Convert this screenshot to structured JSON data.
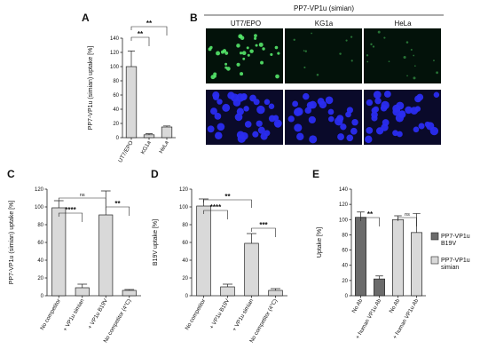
{
  "colors": {
    "bar_light": "#d9d9d9",
    "bar_dark": "#6b6b6b",
    "micro_green_bg": "#03120a",
    "micro_green": "#55e86a",
    "micro_blue_bg": "#0a0a2a",
    "micro_blue": "#2a2cf0"
  },
  "panels": {
    "A": {
      "letter": "A"
    },
    "B": {
      "letter": "B",
      "title": "PP7-VP1u (simian)",
      "columns": [
        "UT7/EPO",
        "KG1a",
        "HeLa"
      ]
    },
    "C": {
      "letter": "C"
    },
    "D": {
      "letter": "D"
    },
    "E": {
      "letter": "E"
    }
  },
  "chart_data": [
    {
      "id": "A",
      "type": "bar",
      "ylabel": "PP7-VP1u (simian) uptake [%]",
      "ylim": [
        0,
        140
      ],
      "yticks": [
        0,
        20,
        40,
        60,
        80,
        100,
        120,
        140
      ],
      "categories": [
        "UT7/EPO",
        "KG1a",
        "HeLa"
      ],
      "values": [
        100,
        4,
        15
      ],
      "errors": [
        22,
        1.5,
        1.5
      ],
      "colors": [
        "#d9d9d9",
        "#d9d9d9",
        "#d9d9d9"
      ],
      "significance": [
        {
          "from": 0,
          "to": 1,
          "label": "**"
        },
        {
          "from": 0,
          "to": 2,
          "label": "**"
        }
      ]
    },
    {
      "id": "C",
      "type": "bar",
      "ylabel": "PP7-VP1u (simian) uptake [%]",
      "ylim": [
        0,
        120
      ],
      "yticks": [
        0,
        20,
        40,
        60,
        80,
        100,
        120
      ],
      "categories": [
        "No competitor",
        "+ VP1u simian",
        "+ VP1u B19V",
        "No competitor (4°C)"
      ],
      "values": [
        99,
        9,
        91,
        6
      ],
      "errors": [
        8,
        4,
        27,
        1
      ],
      "colors": [
        "#d9d9d9",
        "#d9d9d9",
        "#d9d9d9",
        "#d9d9d9"
      ],
      "significance": [
        {
          "from": 0,
          "to": 1,
          "label": "****"
        },
        {
          "from": 2,
          "to": 3,
          "label": "**"
        },
        {
          "from": 0,
          "to": 2,
          "label": "ns"
        }
      ]
    },
    {
      "id": "D",
      "type": "bar",
      "ylabel": "B19V uptake [%]",
      "ylim": [
        0,
        120
      ],
      "yticks": [
        0,
        20,
        40,
        60,
        80,
        100,
        120
      ],
      "categories": [
        "No competitor",
        "+ VP1u B19V",
        "+ VP1u simian",
        "No competitor (4°C)"
      ],
      "values": [
        101,
        10,
        59,
        6
      ],
      "errors": [
        8,
        3,
        11,
        2
      ],
      "colors": [
        "#d9d9d9",
        "#d9d9d9",
        "#d9d9d9",
        "#d9d9d9"
      ],
      "significance": [
        {
          "from": 0,
          "to": 1,
          "label": "****"
        },
        {
          "from": 2,
          "to": 3,
          "label": "***"
        },
        {
          "from": 0,
          "to": 2,
          "label": "**"
        }
      ]
    },
    {
      "id": "E",
      "type": "bar",
      "ylabel": "Uptake [%]",
      "ylim": [
        0,
        140
      ],
      "yticks": [
        0,
        20,
        40,
        60,
        80,
        100,
        120,
        140
      ],
      "categories": [
        "No Ab",
        "+ human VP1u Ab",
        "No Ab",
        "+ human VP1u Ab"
      ],
      "values": [
        103,
        22,
        100,
        83
      ],
      "errors": [
        7,
        4,
        5,
        25
      ],
      "colors": [
        "#6b6b6b",
        "#6b6b6b",
        "#d9d9d9",
        "#d9d9d9"
      ],
      "significance": [
        {
          "from": 0,
          "to": 1,
          "label": "**"
        },
        {
          "from": 2,
          "to": 3,
          "label": "ns"
        }
      ],
      "legend": [
        {
          "name": "PP7-VP1u B19V",
          "color": "#6b6b6b"
        },
        {
          "name": "PP7-VP1u simian",
          "color": "#d9d9d9"
        }
      ]
    }
  ]
}
